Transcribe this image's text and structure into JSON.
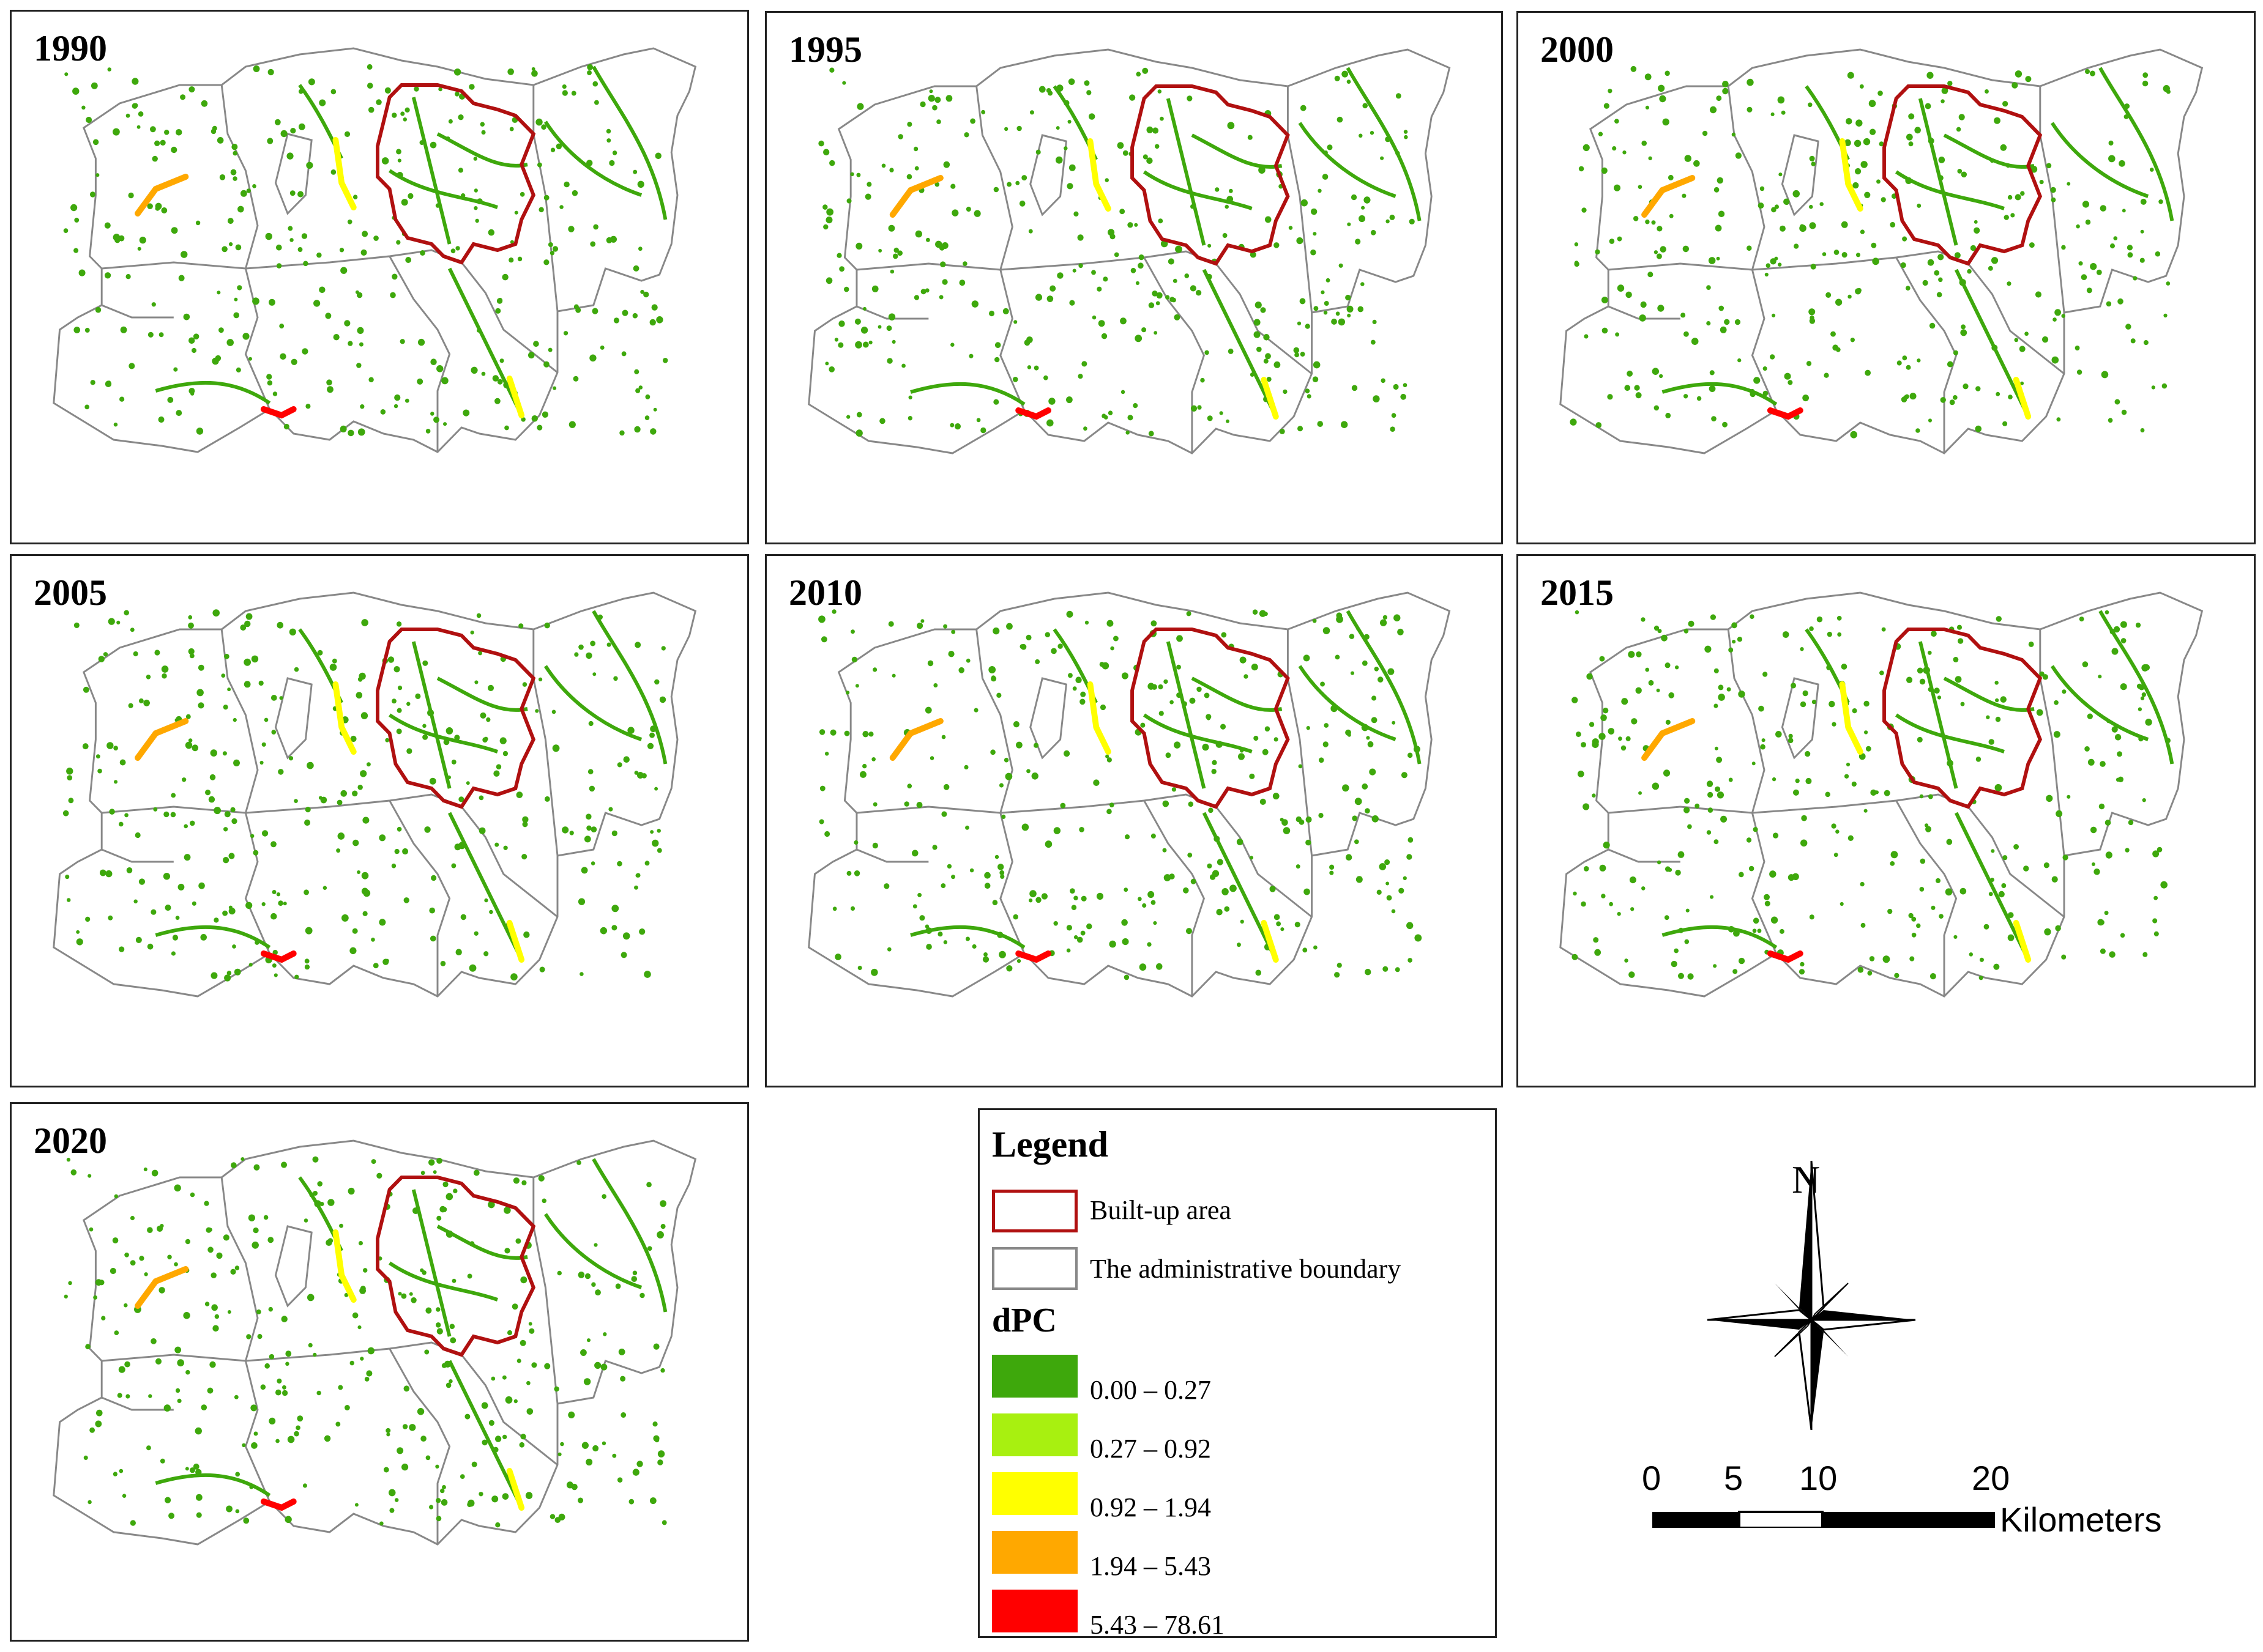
{
  "panels": [
    {
      "year": "1990"
    },
    {
      "year": "1995"
    },
    {
      "year": "2000"
    },
    {
      "year": "2005"
    },
    {
      "year": "2010"
    },
    {
      "year": "2015"
    },
    {
      "year": "2020"
    }
  ],
  "legend": {
    "title": "Legend",
    "builtup_label": "Built-up area",
    "admin_label": "The administrative boundary",
    "dpc_title": "dPC",
    "classes": [
      {
        "label": "0.00 – 0.27",
        "color": "#3ea80c"
      },
      {
        "label": "0.27 – 0.92",
        "color": "#a8f010"
      },
      {
        "label": "0.92 – 1.94",
        "color": "#ffff00"
      },
      {
        "label": "1.94 – 5.43",
        "color": "#ffa800"
      },
      {
        "label": "5.43 – 78.61",
        "color": "#ff0000"
      }
    ]
  },
  "north_label": "N",
  "scale": {
    "ticks": [
      "0",
      "5",
      "10",
      "20"
    ],
    "unit": "Kilometers"
  },
  "colors": {
    "builtup_outline": "#b01010",
    "admin_outline": "#888888",
    "corridor_green": "#3ea80c"
  }
}
